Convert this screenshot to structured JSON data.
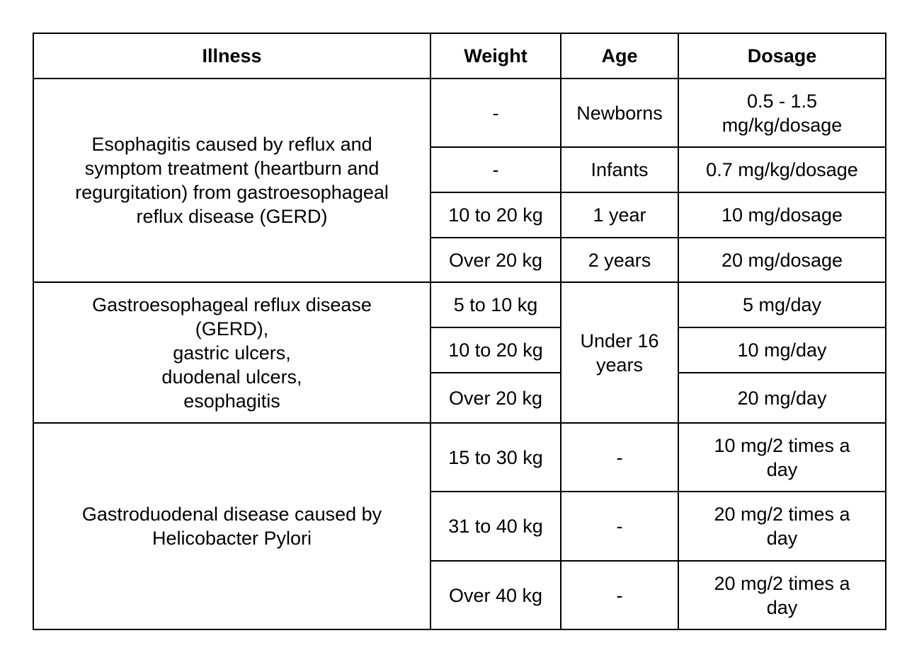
{
  "table": {
    "headers": [
      "Illness",
      "Weight",
      "Age",
      "Dosage"
    ],
    "groups": [
      {
        "illness": "Esophagitis caused by reflux and symptom treatment (heartburn and regurgitation) from gastroesophageal reflux disease (GERD)",
        "rows": [
          {
            "weight": "-",
            "age": "Newborns",
            "dosage": "0.5 - 1.5 mg/kg/dosage"
          },
          {
            "weight": "-",
            "age": "Infants",
            "dosage": "0.7 mg/kg/dosage"
          },
          {
            "weight": "10 to 20 kg",
            "age": "1 year",
            "dosage": "10 mg/dosage"
          },
          {
            "weight": "Over 20 kg",
            "age": "2 years",
            "dosage": "20 mg/dosage"
          }
        ]
      },
      {
        "illness_lines": [
          "Gastroesophageal reflux disease (GERD),",
          "gastric ulcers,",
          "duodenal ulcers,",
          "esophagitis"
        ],
        "age": "Under 16 years",
        "rows": [
          {
            "weight": "5 to 10 kg",
            "dosage": "5 mg/day"
          },
          {
            "weight": "10 to 20 kg",
            "dosage": "10 mg/day"
          },
          {
            "weight": "Over 20 kg",
            "dosage": "20 mg/day"
          }
        ]
      },
      {
        "illness": "Gastroduodenal disease caused by Helicobacter Pylori",
        "rows": [
          {
            "weight": "15 to 30 kg",
            "age": "-",
            "dosage": "10 mg/2 times a day"
          },
          {
            "weight": "31 to 40 kg",
            "age": "-",
            "dosage": "20 mg/2 times a day"
          },
          {
            "weight": "Over 40 kg",
            "age": "-",
            "dosage": "20 mg/2 times a day"
          }
        ]
      }
    ]
  }
}
